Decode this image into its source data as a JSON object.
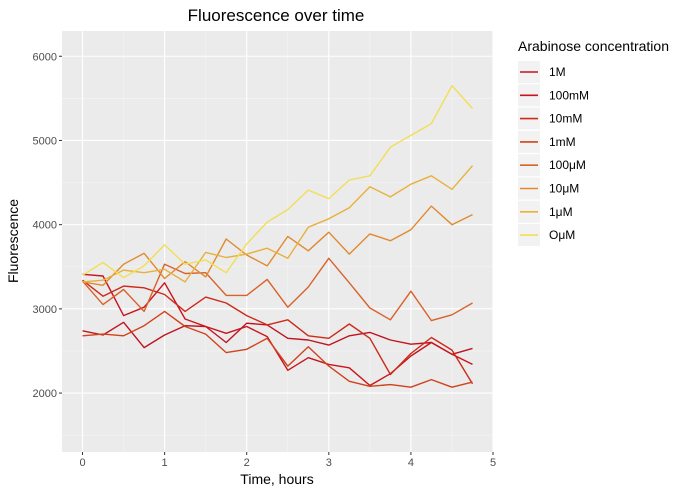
{
  "chart_data": {
    "type": "line",
    "title": "Fluorescence over time",
    "xlabel": "Time, hours",
    "ylabel": "Fluorescence",
    "xlim": [
      -0.25,
      5.0
    ],
    "ylim": [
      1300,
      6300
    ],
    "xticks": [
      0,
      1,
      2,
      3,
      4,
      5
    ],
    "yticks": [
      2000,
      3000,
      4000,
      5000,
      6000
    ],
    "grid": true,
    "legend_title": "Arabinose concentration",
    "legend_position": "right",
    "x": [
      0,
      0.25,
      0.5,
      0.75,
      1.0,
      1.25,
      1.5,
      1.75,
      2.0,
      2.25,
      2.5,
      2.75,
      3.0,
      3.25,
      3.5,
      3.75,
      4.0,
      4.25,
      4.5,
      4.75
    ],
    "series": [
      {
        "name": "1M",
        "color": "#c1121f",
        "values": [
          2740,
          2690,
          2840,
          2540,
          2690,
          2800,
          2790,
          2600,
          2830,
          2810,
          2650,
          2630,
          2570,
          2680,
          2720,
          2630,
          2580,
          2600,
          2460,
          2530
        ]
      },
      {
        "name": "100mM",
        "color": "#c8141c",
        "values": [
          3410,
          3390,
          2920,
          3020,
          3310,
          2880,
          2790,
          2710,
          2790,
          2670,
          2270,
          2420,
          2340,
          2300,
          2090,
          2230,
          2440,
          2600,
          2460,
          2340
        ]
      },
      {
        "name": "10mM",
        "color": "#cc2a1a",
        "values": [
          3340,
          3150,
          3270,
          3250,
          3170,
          2970,
          3140,
          3070,
          2920,
          2810,
          2870,
          2680,
          2650,
          2820,
          2650,
          2220,
          2470,
          2660,
          2510,
          2110
        ]
      },
      {
        "name": "1mM",
        "color": "#d0421c",
        "values": [
          2680,
          2700,
          2680,
          2800,
          2970,
          2790,
          2700,
          2480,
          2520,
          2650,
          2320,
          2550,
          2320,
          2140,
          2080,
          2100,
          2070,
          2160,
          2070,
          2130
        ]
      },
      {
        "name": "100μM",
        "color": "#d9622a",
        "values": [
          3330,
          3050,
          3230,
          2970,
          3530,
          3420,
          3430,
          3160,
          3160,
          3350,
          3020,
          3260,
          3600,
          3310,
          3010,
          2870,
          3210,
          2860,
          2930,
          3070
        ]
      },
      {
        "name": "10μM",
        "color": "#e08a30",
        "values": [
          3320,
          3280,
          3530,
          3660,
          3360,
          3560,
          3380,
          3830,
          3640,
          3510,
          3860,
          3690,
          3910,
          3650,
          3890,
          3810,
          3940,
          4220,
          4000,
          4120
        ]
      },
      {
        "name": "1μM",
        "color": "#e8b03c",
        "values": [
          3320,
          3340,
          3460,
          3430,
          3470,
          3320,
          3670,
          3610,
          3650,
          3720,
          3600,
          3970,
          4070,
          4200,
          4450,
          4330,
          4480,
          4580,
          4420,
          4700
        ]
      },
      {
        "name": "OμM",
        "color": "#f2de56",
        "values": [
          3400,
          3550,
          3370,
          3510,
          3760,
          3530,
          3580,
          3430,
          3770,
          4030,
          4180,
          4410,
          4310,
          4530,
          4580,
          4920,
          5060,
          5200,
          5650,
          5380
        ]
      }
    ]
  }
}
